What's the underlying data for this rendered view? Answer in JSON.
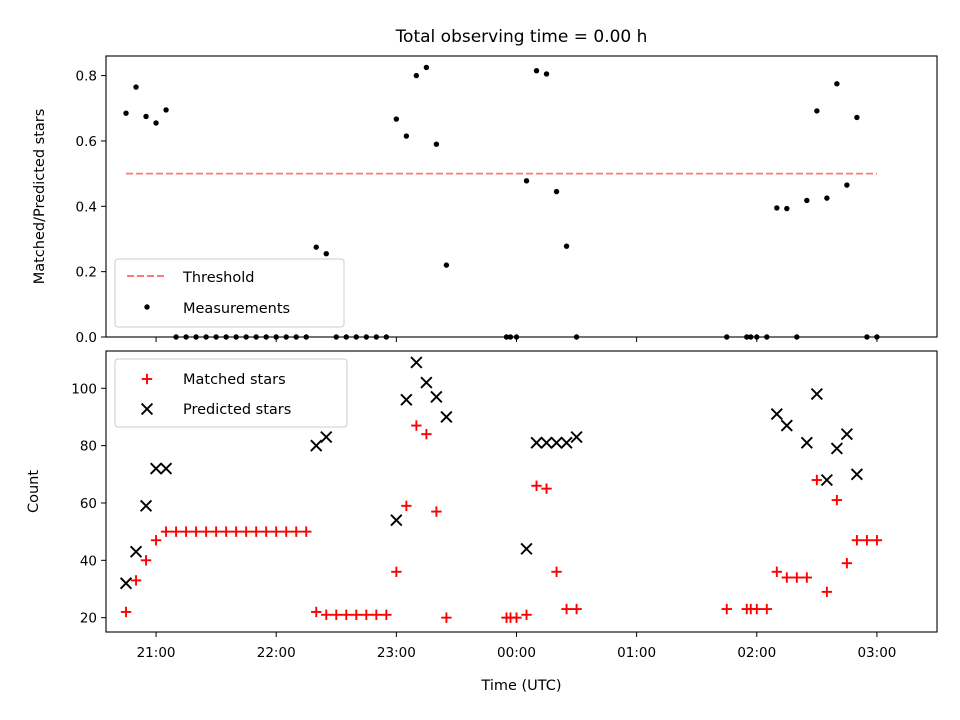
{
  "chart_data": [
    {
      "type": "scatter",
      "title": "Total observing time = 0.00 h",
      "xlabel": "",
      "ylabel": "Matched/Predicted stars",
      "ylim": [
        0,
        0.86
      ],
      "yticks": [
        "0.0",
        "0.2",
        "0.4",
        "0.6",
        "0.8"
      ],
      "xlim": [
        "20:35",
        "03:30"
      ],
      "grid": false,
      "legend_position": "lower-left",
      "threshold": {
        "name": "Threshold",
        "value": 0.5,
        "color": "#ff7777",
        "x_start": "20:45",
        "x_end": "03:00"
      },
      "series": [
        {
          "name": "Measurements",
          "color": "#000000",
          "x": [
            "20:45",
            "20:50",
            "20:55",
            "21:00",
            "21:05",
            "21:10",
            "21:15",
            "21:20",
            "21:25",
            "21:30",
            "21:35",
            "21:40",
            "21:45",
            "21:50",
            "21:55",
            "22:00",
            "22:05",
            "22:10",
            "22:15",
            "22:20",
            "22:25",
            "22:30",
            "22:35",
            "22:40",
            "22:45",
            "22:50",
            "22:55",
            "23:00",
            "23:05",
            "23:10",
            "23:15",
            "23:20",
            "23:25",
            "23:55",
            "23:57",
            "00:00",
            "00:05",
            "00:10",
            "00:15",
            "00:20",
            "00:25",
            "00:30",
            "01:45",
            "01:55",
            "01:57",
            "02:00",
            "02:05",
            "02:10",
            "02:15",
            "02:20",
            "02:25",
            "02:30",
            "02:35",
            "02:40",
            "02:45",
            "02:50",
            "02:55",
            "03:00"
          ],
          "y": [
            0.685,
            0.765,
            0.675,
            0.655,
            0.695,
            0,
            0,
            0,
            0,
            0,
            0,
            0,
            0,
            0,
            0,
            0,
            0,
            0,
            0,
            0.275,
            0.255,
            0,
            0,
            0,
            0,
            0,
            0,
            0.667,
            0.615,
            0.8,
            0.825,
            0.59,
            0.22,
            0,
            0,
            0,
            0.478,
            0.815,
            0.805,
            0.445,
            0.278,
            0,
            0,
            0,
            0,
            0,
            0,
            0.395,
            0.393,
            0,
            0.418,
            0.692,
            0.425,
            0.775,
            0.465,
            0.672,
            0,
            0
          ]
        }
      ]
    },
    {
      "type": "scatter",
      "title": "",
      "xlabel": "Time (UTC)",
      "ylabel": "Count",
      "ylim": [
        15,
        113
      ],
      "yticks": [
        "20",
        "40",
        "60",
        "80",
        "100"
      ],
      "xticks": [
        "21:00",
        "22:00",
        "23:00",
        "00:00",
        "01:00",
        "02:00",
        "03:00"
      ],
      "xlim": [
        "20:35",
        "03:30"
      ],
      "grid": false,
      "legend_position": "upper-left",
      "series": [
        {
          "name": "Matched stars",
          "marker": "plus",
          "color": "#ff0000",
          "x": [
            "20:45",
            "20:50",
            "20:55",
            "21:00",
            "21:05",
            "21:10",
            "21:15",
            "21:20",
            "21:25",
            "21:30",
            "21:35",
            "21:40",
            "21:45",
            "21:50",
            "21:55",
            "22:00",
            "22:05",
            "22:10",
            "22:15",
            "22:20",
            "22:25",
            "22:30",
            "22:35",
            "22:40",
            "22:45",
            "22:50",
            "22:55",
            "23:00",
            "23:05",
            "23:10",
            "23:15",
            "23:20",
            "23:25",
            "23:55",
            "23:57",
            "00:00",
            "00:05",
            "00:10",
            "00:15",
            "00:20",
            "00:25",
            "00:30",
            "01:45",
            "01:55",
            "01:57",
            "02:00",
            "02:05",
            "02:10",
            "02:15",
            "02:20",
            "02:25",
            "02:30",
            "02:35",
            "02:40",
            "02:45",
            "02:50",
            "02:55",
            "03:00"
          ],
          "y": [
            22,
            33,
            40,
            47,
            50,
            50,
            50,
            50,
            50,
            50,
            50,
            50,
            50,
            50,
            50,
            50,
            50,
            50,
            50,
            22,
            21,
            21,
            21,
            21,
            21,
            21,
            21,
            36,
            59,
            87,
            84,
            57,
            20,
            20,
            20,
            20,
            21,
            66,
            65,
            36,
            23,
            23,
            23,
            23,
            23,
            23,
            23,
            36,
            34,
            34,
            34,
            68,
            29,
            61,
            39,
            47,
            47,
            47
          ]
        },
        {
          "name": "Predicted stars",
          "marker": "x",
          "color": "#000000",
          "x": [
            "20:45",
            "20:50",
            "20:55",
            "21:00",
            "21:05",
            "22:20",
            "22:25",
            "23:00",
            "23:05",
            "23:10",
            "23:15",
            "23:20",
            "23:25",
            "00:05",
            "00:10",
            "00:15",
            "00:20",
            "00:25",
            "00:30",
            "02:10",
            "02:15",
            "02:25",
            "02:30",
            "02:35",
            "02:40",
            "02:45",
            "02:50"
          ],
          "y": [
            32,
            43,
            59,
            72,
            72,
            80,
            83,
            54,
            96,
            109,
            102,
            97,
            90,
            44,
            81,
            81,
            81,
            81,
            83,
            91,
            87,
            81,
            98,
            68,
            79,
            84,
            70
          ]
        }
      ]
    }
  ]
}
